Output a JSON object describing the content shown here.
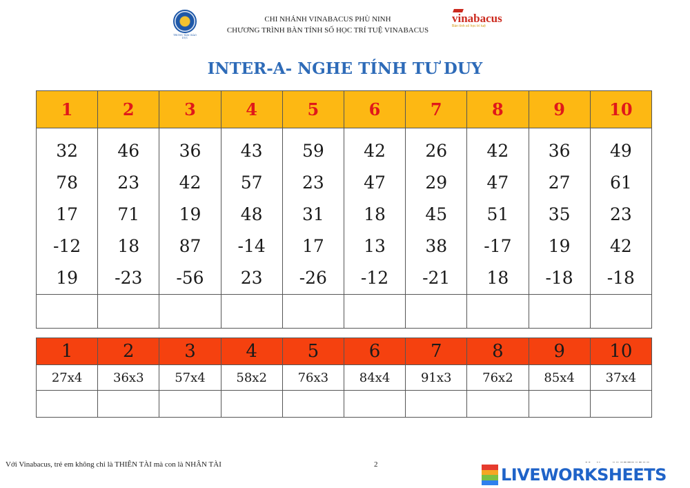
{
  "header": {
    "line1": "CHI NHÁNH VINABACUS PHÙ NINH",
    "line2": "CHƯƠNG TRÌNH BÀN TÍNH SỐ HỌC TRÍ TUỆ VINABACUS",
    "logo_left_text": "TRUNG TÂM GIÁO DỤC",
    "logo_right_brand": "vinabacus",
    "logo_right_sub": "Bàn tính số học trí tuệ"
  },
  "title": "INTER-A- NGHE TÍNH TƯ DUY",
  "table1": {
    "header_color": "#fdb813",
    "headers": [
      "1",
      "2",
      "3",
      "4",
      "5",
      "6",
      "7",
      "8",
      "9",
      "10"
    ],
    "columns": [
      [
        "32",
        "78",
        "17",
        "-12",
        "19"
      ],
      [
        "46",
        "23",
        "71",
        "18",
        "-23"
      ],
      [
        "36",
        "42",
        "19",
        "87",
        "-56"
      ],
      [
        "43",
        "57",
        "48",
        "-14",
        "23"
      ],
      [
        "59",
        "23",
        "31",
        "17",
        "-26"
      ],
      [
        "42",
        "47",
        "18",
        "13",
        "-12"
      ],
      [
        "26",
        "29",
        "45",
        "38",
        "-21"
      ],
      [
        "42",
        "47",
        "51",
        "-17",
        "18"
      ],
      [
        "36",
        "27",
        "35",
        "19",
        "-18"
      ],
      [
        "49",
        "61",
        "23",
        "42",
        "-18"
      ]
    ]
  },
  "table2": {
    "header_color": "#f5410f",
    "headers": [
      "1",
      "2",
      "3",
      "4",
      "5",
      "6",
      "7",
      "8",
      "9",
      "10"
    ],
    "problems": [
      "27x4",
      "36x3",
      "57x4",
      "58x2",
      "76x3",
      "84x4",
      "91x3",
      "76x2",
      "85x4",
      "37x4"
    ]
  },
  "footer": {
    "slogan": "Với Vinabacus, trẻ em không chỉ là THIÊN TÀI mà con là NHÂN TÀI",
    "page_number": "2",
    "hotline": "Hotline: 0965730588",
    "brand": "LIVEWORKSHEETS"
  }
}
